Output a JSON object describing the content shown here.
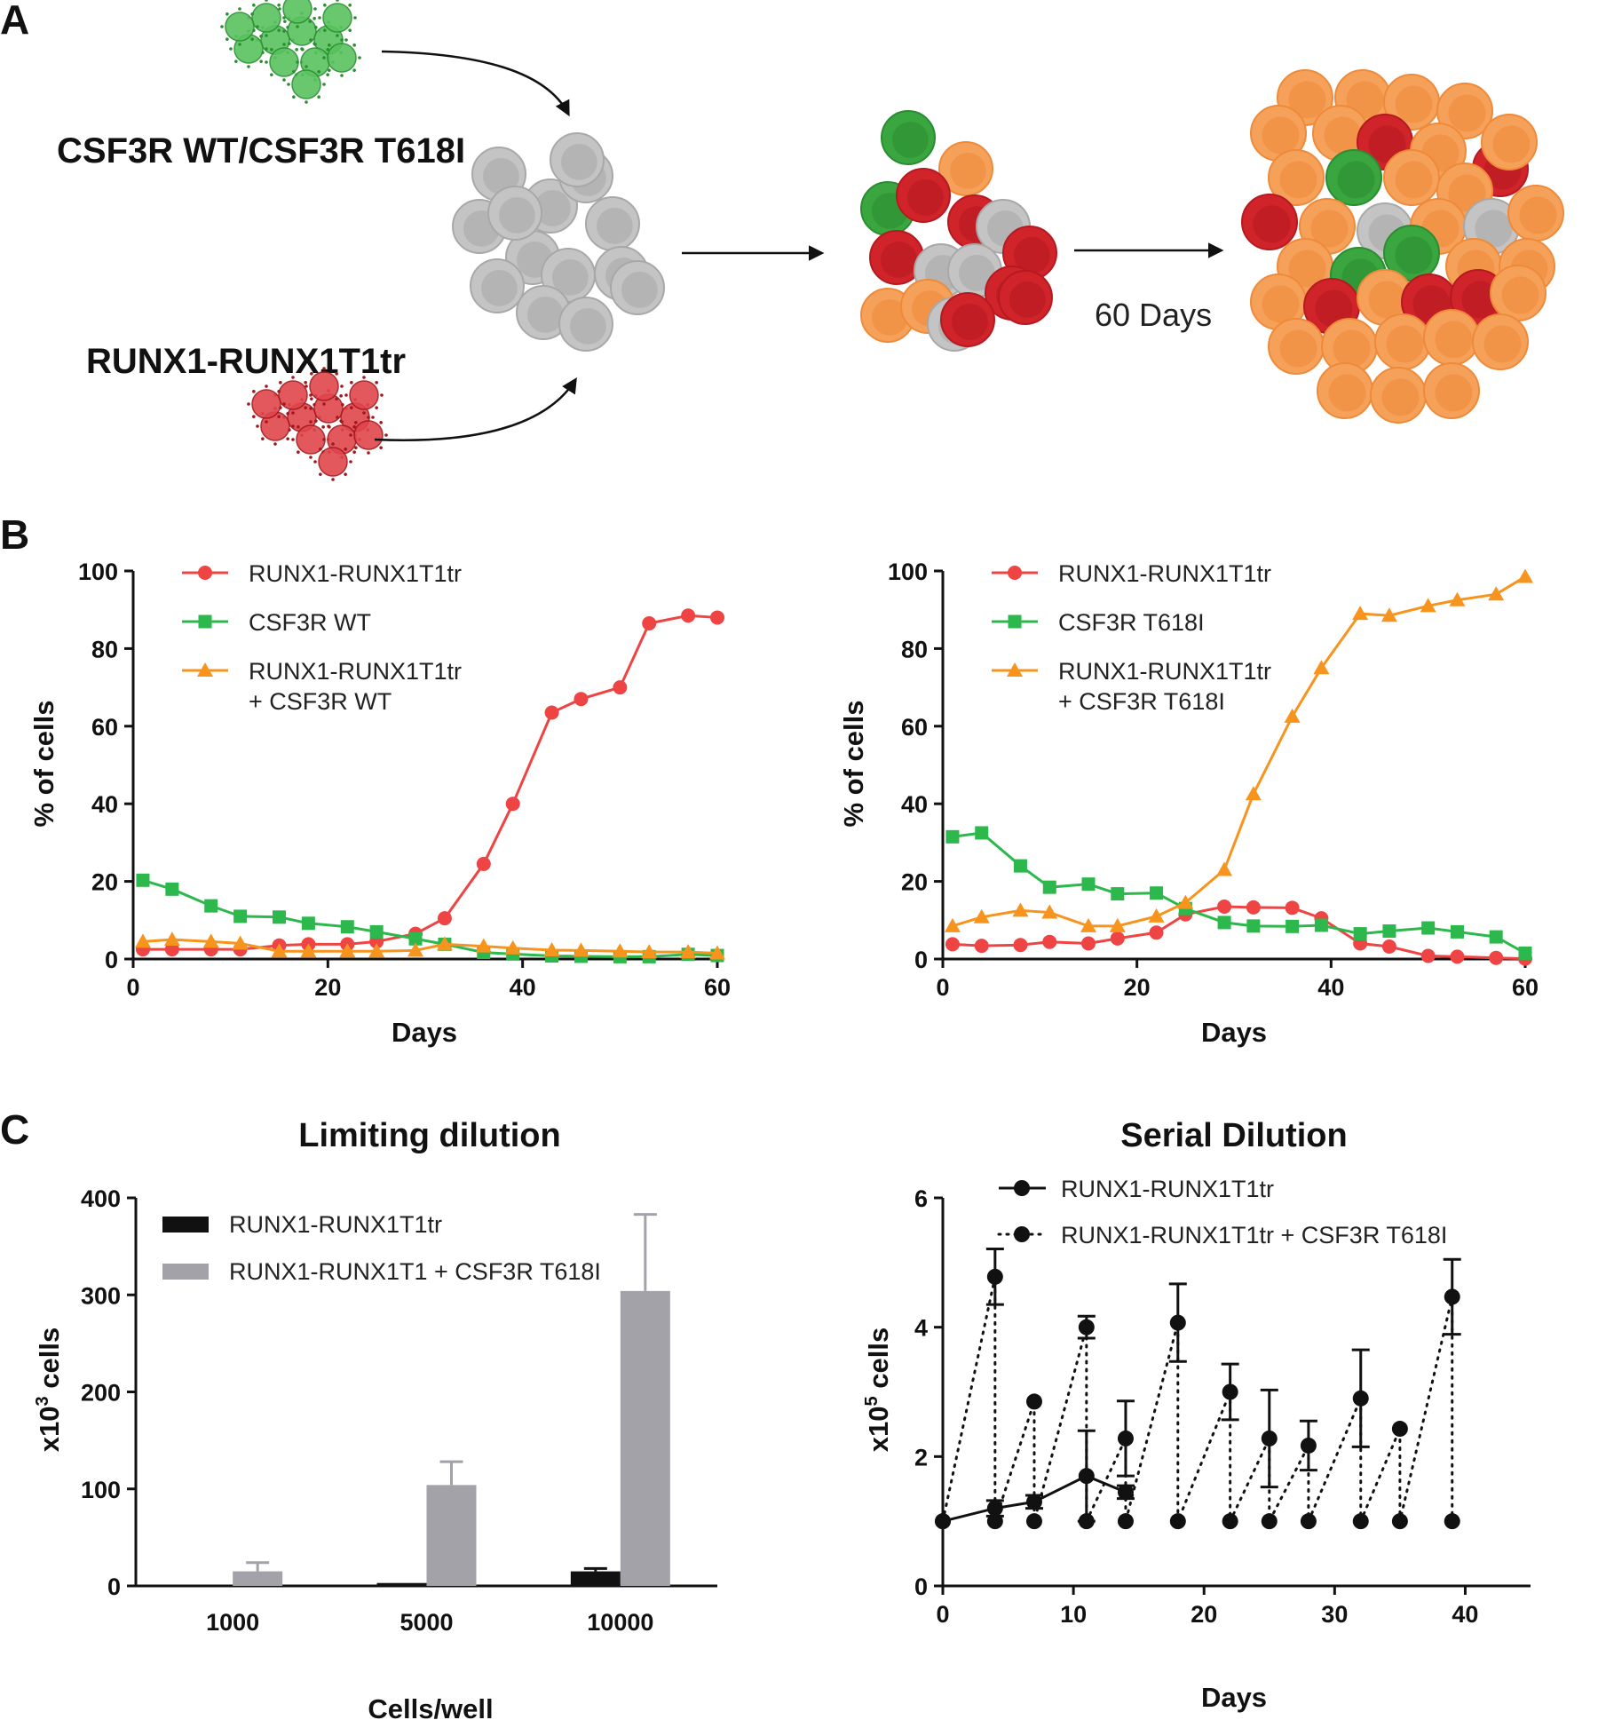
{
  "figure": {
    "panel_a": {
      "letter": "A",
      "label_top": "CSF3R WT/CSF3R T618I",
      "label_bottom": "RUNX1-RUNX1T1tr",
      "duration_label": "60 Days"
    },
    "panel_b_letter": "B",
    "panel_c_letter": "C"
  },
  "colors": {
    "red": "#ee4444",
    "green": "#2db84d",
    "orange": "#f7941d",
    "black": "#111111",
    "gray": "#a2a2a8",
    "cell_gray": "#c4c4c4",
    "cell_orange": "#f6a15a",
    "cell_red": "#d0232a",
    "cell_green": "#3aa63f"
  },
  "chart_data": [
    {
      "id": "b_left",
      "type": "line",
      "title": "",
      "xlabel": "Days",
      "ylabel": "% of cells",
      "xlim": [
        0,
        60
      ],
      "ylim": [
        0,
        100
      ],
      "xticks": [
        0,
        20,
        40,
        60
      ],
      "yticks": [
        0,
        20,
        40,
        60,
        80,
        100
      ],
      "legend_position": "top-left",
      "series": [
        {
          "name": "RUNX1-RUNX1T1tr",
          "marker": "circle",
          "color": "#ee4444",
          "x": [
            1,
            4,
            8,
            11,
            15,
            18,
            22,
            25,
            29,
            32,
            36,
            39,
            43,
            46,
            50,
            53,
            57,
            60
          ],
          "y": [
            2.5,
            2.5,
            2.5,
            2.5,
            3.5,
            3.8,
            3.8,
            4.5,
            6.5,
            10.5,
            24.5,
            40,
            63.5,
            67,
            70,
            86.5,
            88.5,
            88
          ]
        },
        {
          "name": "CSF3R WT",
          "marker": "square",
          "color": "#2db84d",
          "x": [
            1,
            4,
            8,
            11,
            15,
            18,
            22,
            25,
            29,
            32,
            36,
            39,
            43,
            46,
            50,
            53,
            57,
            60
          ],
          "y": [
            20.3,
            18,
            13.7,
            11,
            10.8,
            9.2,
            8.3,
            7,
            5.2,
            3.8,
            1.7,
            1.3,
            0.8,
            0.7,
            0.6,
            0.6,
            1.2,
            0.9
          ]
        },
        {
          "name": "RUNX1-RUNX1T1tr\n+ CSF3R WT",
          "marker": "triangle",
          "color": "#f7941d",
          "x": [
            1,
            4,
            8,
            11,
            15,
            18,
            22,
            25,
            29,
            32,
            36,
            39,
            43,
            46,
            50,
            53,
            57,
            60
          ],
          "y": [
            4.5,
            5,
            4.5,
            4,
            2,
            2,
            2,
            2,
            2.2,
            3.8,
            3.3,
            2.8,
            2.3,
            2.2,
            2,
            1.8,
            1.8,
            1.5
          ]
        }
      ]
    },
    {
      "id": "b_right",
      "type": "line",
      "title": "",
      "xlabel": "Days",
      "ylabel": "% of cells",
      "xlim": [
        0,
        60
      ],
      "ylim": [
        0,
        100
      ],
      "xticks": [
        0,
        20,
        40,
        60
      ],
      "yticks": [
        0,
        20,
        40,
        60,
        80,
        100
      ],
      "legend_position": "top-left",
      "series": [
        {
          "name": "RUNX1-RUNX1T1tr",
          "marker": "circle",
          "color": "#ee4444",
          "x": [
            1,
            4,
            8,
            11,
            15,
            18,
            22,
            25,
            29,
            32,
            36,
            39,
            43,
            46,
            50,
            53,
            57,
            60
          ],
          "y": [
            3.8,
            3.4,
            3.6,
            4.4,
            4,
            5.3,
            6.8,
            11.5,
            13.5,
            13.3,
            13.2,
            10.5,
            4,
            3.2,
            0.8,
            0.6,
            0.3,
            0.1
          ]
        },
        {
          "name": "CSF3R T618I",
          "marker": "square",
          "color": "#2db84d",
          "x": [
            1,
            4,
            8,
            11,
            15,
            18,
            22,
            25,
            29,
            32,
            36,
            39,
            43,
            46,
            50,
            53,
            57,
            60
          ],
          "y": [
            31.5,
            32.5,
            24,
            18.5,
            19.3,
            16.8,
            17,
            13,
            9.4,
            8.5,
            8.4,
            8.7,
            6.5,
            7.2,
            8,
            7,
            5.7,
            1.5
          ]
        },
        {
          "name": "RUNX1-RUNX1T1tr\n+ CSF3R T618I",
          "marker": "triangle",
          "color": "#f7941d",
          "x": [
            1,
            4,
            8,
            11,
            15,
            18,
            22,
            25,
            29,
            32,
            36,
            39,
            43,
            46,
            50,
            53,
            57,
            60
          ],
          "y": [
            8.5,
            10.8,
            12.5,
            12,
            8.5,
            8.5,
            11,
            14.5,
            23,
            42.5,
            62.5,
            75,
            89,
            88.5,
            91,
            92.5,
            94,
            98.5
          ]
        }
      ]
    },
    {
      "id": "c_left",
      "type": "bar",
      "title": "Limiting dilution",
      "xlabel": "Cells/well",
      "ylabel": "x10",
      "ylabel_superscript": "3",
      "ylabel_suffix": " cells",
      "ylim": [
        0,
        400
      ],
      "yticks": [
        0,
        100,
        200,
        300,
        400
      ],
      "categories": [
        "1000",
        "5000",
        "10000"
      ],
      "legend_position": "top-left",
      "series": [
        {
          "name": "RUNX1-RUNX1T1tr",
          "color": "#111111",
          "values": [
            0,
            3,
            15
          ],
          "error": [
            0,
            0,
            3
          ]
        },
        {
          "name": "RUNX1-RUNX1T1 + CSF3R T618I",
          "color": "#a2a2a8",
          "values": [
            15,
            104,
            304
          ],
          "error": [
            9,
            24,
            79
          ]
        }
      ]
    },
    {
      "id": "c_right",
      "type": "line",
      "title": "Serial Dilution",
      "xlabel": "Days",
      "ylabel": "x10",
      "ylabel_superscript": "5",
      "ylabel_suffix": " cells",
      "xlim": [
        0,
        45
      ],
      "ylim": [
        0,
        6
      ],
      "xticks": [
        0,
        10,
        20,
        30,
        40
      ],
      "yticks": [
        0,
        2,
        4,
        6
      ],
      "legend_position": "top",
      "series": [
        {
          "name": "RUNX1-RUNX1T1tr",
          "style": "solid",
          "color": "#111111",
          "x": [
            0,
            4,
            7,
            11,
            14
          ],
          "y": [
            1.0,
            1.2,
            1.3,
            1.7,
            1.45
          ],
          "error": [
            0,
            0.12,
            0.1,
            0.7,
            0.1
          ]
        },
        {
          "name": "RUNX1-RUNX1T1tr + CSF3R T618I",
          "style": "dotted",
          "color": "#111111",
          "x": [
            0,
            4,
            4,
            7,
            7,
            11,
            11,
            14,
            14,
            18,
            18,
            22,
            22,
            25,
            25,
            28,
            28,
            32,
            32,
            35,
            35,
            39,
            39
          ],
          "y": [
            1.0,
            4.78,
            1.0,
            2.85,
            1.0,
            4.0,
            1.0,
            2.28,
            1.0,
            4.07,
            1.0,
            3.0,
            1.0,
            2.28,
            1.0,
            2.17,
            1.0,
            2.9,
            1.0,
            2.43,
            1.0,
            4.47,
            1.0
          ],
          "error": [
            0,
            0.43,
            0,
            0,
            0,
            0.17,
            0,
            0.58,
            0,
            0.6,
            0,
            0.43,
            0,
            0.75,
            0,
            0.38,
            0,
            0.75,
            0,
            0,
            0,
            0.58,
            0
          ]
        }
      ]
    }
  ]
}
